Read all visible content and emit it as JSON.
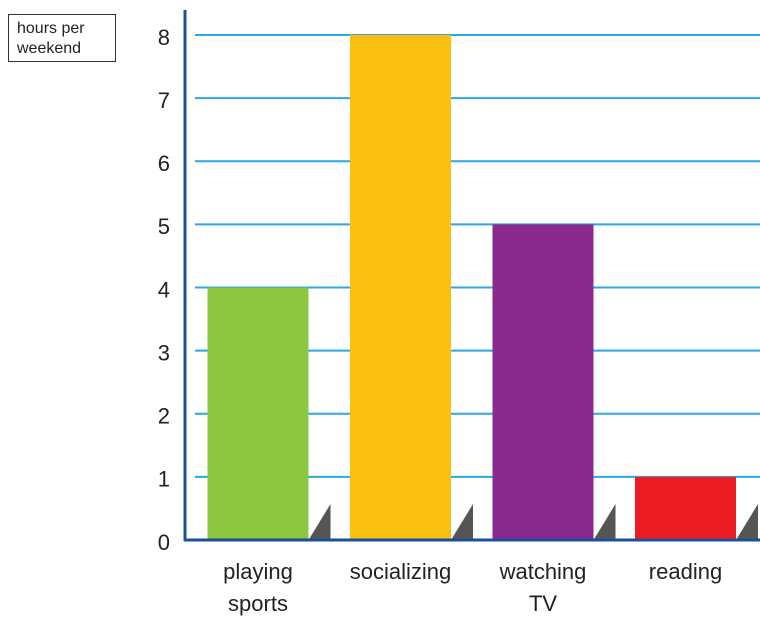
{
  "chart_data": {
    "type": "bar",
    "y_label": "hours per weekend",
    "categories": [
      "playing sports",
      "socializing",
      "watching TV",
      "reading"
    ],
    "values": [
      4,
      8,
      5,
      1
    ],
    "colors": [
      "#8dc63f",
      "#fbbf10",
      "#8b2a8e",
      "#ed1c24"
    ],
    "ylim": [
      0,
      8
    ],
    "yticks": [
      0,
      1,
      2,
      3,
      4,
      5,
      6,
      7,
      8
    ],
    "grid": true
  }
}
